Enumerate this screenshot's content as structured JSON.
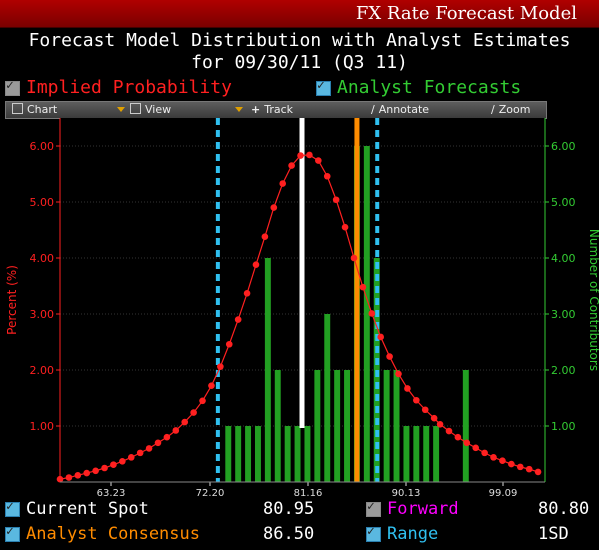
{
  "window": {
    "title": "FX Rate Forecast Model"
  },
  "header": {
    "line1": "Forecast Model Distribution with Analyst Estimates",
    "line2": "for  09/30/11 (Q3 11)"
  },
  "legend": {
    "implied_label": "Implied Probability",
    "analyst_label": "Analyst Forecasts"
  },
  "toolbar": {
    "chart_label": "Chart",
    "view_label": "View",
    "track_label": "Track",
    "annotate_label": "Annotate",
    "zoom_label": "Zoom"
  },
  "footer": {
    "current_spot_label": "Current Spot",
    "current_spot_value": "80.95",
    "forward_label": "Forward",
    "forward_value": "80.80",
    "consensus_label": "Analyst Consensus",
    "consensus_value": "86.50",
    "range_label": "Range",
    "range_value": "1SD"
  },
  "colors": {
    "red": "#ff2020",
    "green": "#22a022",
    "axis_green": "#33cc33",
    "orange": "#ff8c00",
    "cyan": "#30c0f0",
    "white": "#ffffff",
    "magenta": "#ff00ff"
  },
  "chart_data": {
    "type": "bar",
    "xlim": [
      56.5,
      105.5
    ],
    "x_ticks": [
      "63.23",
      "72.20",
      "81.16",
      "90.13",
      "99.09"
    ],
    "left_axis": {
      "label": "Percent (%)",
      "ylim": [
        0,
        6.5
      ],
      "ticks": [
        "1.00",
        "2.00",
        "3.00",
        "4.00",
        "5.00",
        "6.00"
      ]
    },
    "right_axis": {
      "label": "Number of Contributors",
      "ylim": [
        0,
        6.5
      ],
      "ticks": [
        "1.00",
        "2.00",
        "3.00",
        "4.00",
        "5.00",
        "6.00"
      ]
    },
    "implied_probability": {
      "x": [
        56.5,
        57.4,
        58.3,
        59.2,
        60.1,
        61.0,
        61.9,
        62.8,
        63.7,
        64.6,
        65.5,
        66.4,
        67.3,
        68.2,
        69.1,
        70.0,
        70.9,
        71.8,
        72.7,
        73.6,
        74.5,
        75.4,
        76.3,
        77.2,
        78.1,
        79.0,
        79.9,
        80.8,
        81.7,
        82.6,
        83.5,
        84.4,
        85.3,
        86.2,
        87.1,
        88.0,
        88.9,
        89.8,
        90.7,
        91.6,
        92.5,
        93.4,
        94.3,
        94.9,
        95.8,
        96.7,
        97.6,
        98.5,
        99.4,
        100.3,
        101.2,
        102.1,
        103.0,
        103.9,
        104.8
      ],
      "y": [
        0.05,
        0.08,
        0.12,
        0.16,
        0.2,
        0.25,
        0.31,
        0.37,
        0.44,
        0.52,
        0.6,
        0.7,
        0.8,
        0.92,
        1.07,
        1.24,
        1.45,
        1.72,
        2.06,
        2.46,
        2.9,
        3.37,
        3.88,
        4.38,
        4.9,
        5.33,
        5.65,
        5.83,
        5.84,
        5.74,
        5.46,
        5.04,
        4.55,
        4.0,
        3.48,
        3.01,
        2.59,
        2.24,
        1.93,
        1.67,
        1.46,
        1.29,
        1.14,
        1.03,
        0.91,
        0.8,
        0.7,
        0.61,
        0.52,
        0.44,
        0.38,
        0.32,
        0.27,
        0.23,
        0.18
      ]
    },
    "analyst_forecasts": {
      "x": [
        73.5,
        74.5,
        75.5,
        76.5,
        77.5,
        78.5,
        79.5,
        80.5,
        81.5,
        82.5,
        83.5,
        84.5,
        85.5,
        86.5,
        87.5,
        88.5,
        89.5,
        90.5,
        91.5,
        92.5,
        93.5,
        94.5,
        95.5,
        96.5,
        97.5
      ],
      "y": [
        1,
        1,
        1,
        1,
        4,
        2,
        1,
        1,
        1,
        2,
        3,
        2,
        2,
        6,
        6,
        4,
        2,
        2,
        1,
        1,
        1,
        1,
        0,
        0,
        2
      ]
    },
    "markers": {
      "current_spot": 80.95,
      "analyst_consensus": 86.5,
      "range_low": 72.45,
      "range_high": 88.55
    }
  }
}
